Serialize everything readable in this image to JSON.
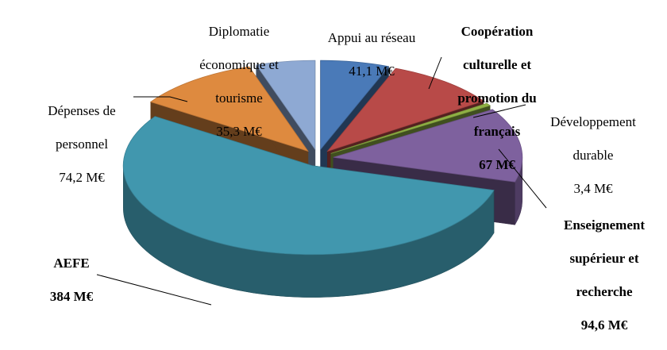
{
  "chart_data": {
    "type": "pie",
    "unit": "M€",
    "slices": [
      {
        "name": "Appui au réseau",
        "value": 41.1,
        "value_label": "41,1 M€",
        "color": "#4a7ab8",
        "bold": false
      },
      {
        "name": "Coopération culturelle et promotion du français",
        "value": 67,
        "value_label": "67 M€",
        "color": "#b84a48",
        "bold": true
      },
      {
        "name": "Développement durable",
        "value": 3.4,
        "value_label": "3,4 M€",
        "color": "#8fb044",
        "bold": false
      },
      {
        "name": "Enseignement supérieur et recherche",
        "value": 94.6,
        "value_label": "94,6 M€",
        "color": "#7e619e",
        "bold": true
      },
      {
        "name": "AEFE",
        "value": 384,
        "value_label": "384 M€",
        "color": "#4197ae",
        "bold": true
      },
      {
        "name": "Dépenses de personnel",
        "value": 74.2,
        "value_label": "74,2 M€",
        "color": "#de8a3f",
        "bold": false
      },
      {
        "name": "Diplomatie économique et tourisme",
        "value": 35.3,
        "value_label": "35,3 M€",
        "color": "#8ea9d3",
        "bold": false
      }
    ],
    "exploded": true,
    "style": "3d"
  },
  "labels": [
    {
      "lines": [
        "Appui au réseau",
        "41,1 M€"
      ]
    },
    {
      "lines": [
        "Coopération",
        "culturelle et",
        "promotion du",
        "français",
        "67 M€"
      ]
    },
    {
      "lines": [
        "Développement",
        "durable",
        "3,4 M€"
      ]
    },
    {
      "lines": [
        "Enseignement",
        "supérieur et",
        "recherche",
        "94,6 M€"
      ]
    },
    {
      "lines": [
        "AEFE",
        "384 M€"
      ]
    },
    {
      "lines": [
        "Dépenses de",
        "personnel",
        "74,2 M€"
      ]
    },
    {
      "lines": [
        "Diplomatie",
        "économique et",
        "tourisme",
        "35,3 M€"
      ]
    }
  ]
}
